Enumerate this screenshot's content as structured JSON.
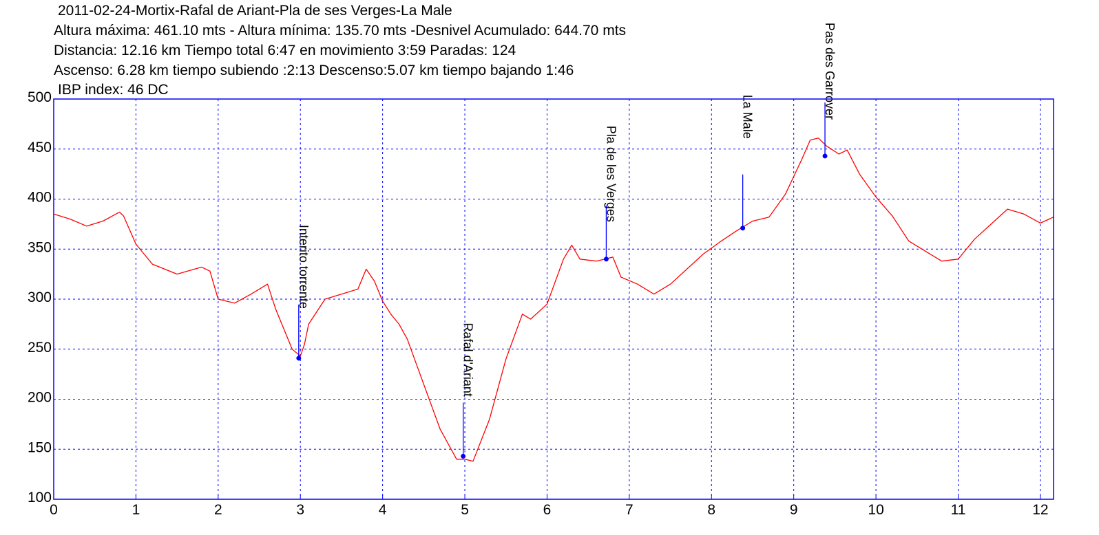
{
  "header": {
    "line1": "2011-02-24-Mortix-Rafal de Ariant-Pla de ses Verges-La Male",
    "line2": "Altura máxima: 461.10 mts - Altura mínima: 135.70 mts -Desnivel Acumulado: 644.70 mts",
    "line3": "Distancia: 12.16 km  Tiempo total 6:47  en movimiento 3:59 Paradas: 124",
    "line4": "Ascenso: 6.28 km  tiempo subiendo :2:13  Descenso:5.07 km tiempo bajando 1:46",
    "line5": "IBP index: 46 DC"
  },
  "chart_data": {
    "type": "line",
    "title": "2011-02-24-Mortix-Rafal de Ariant-Pla de ses Verges-La Male",
    "xlabel": "",
    "ylabel": "",
    "xlim": [
      0,
      12.16
    ],
    "ylim": [
      100,
      500
    ],
    "xticks": [
      "0",
      "1",
      "2",
      "3",
      "4",
      "5",
      "6",
      "7",
      "8",
      "9",
      "10",
      "11",
      "12"
    ],
    "yticks": [
      "100",
      "150",
      "200",
      "250",
      "300",
      "350",
      "400",
      "450",
      "500"
    ],
    "grid": true,
    "colors": {
      "line": "#ff0000",
      "axes": "#0000ff",
      "grid": "#0000ff",
      "marker": "#0000ff"
    },
    "series": [
      {
        "x": [
          0,
          0.2,
          0.4,
          0.6,
          0.8,
          0.85,
          1.0,
          1.2,
          1.5,
          1.8,
          1.9,
          2.0,
          2.2,
          2.4,
          2.6,
          2.7,
          2.8,
          2.9,
          3.0,
          3.05,
          3.1,
          3.3,
          3.5,
          3.7,
          3.8,
          3.9,
          4.0,
          4.1,
          4.2,
          4.3,
          4.5,
          4.7,
          4.9,
          5.0,
          5.1,
          5.3,
          5.5,
          5.7,
          5.8,
          6.0,
          6.2,
          6.3,
          6.4,
          6.6,
          6.8,
          6.9,
          7.1,
          7.3,
          7.5,
          7.7,
          7.9,
          8.1,
          8.3,
          8.5,
          8.7,
          8.9,
          9.1,
          9.2,
          9.3,
          9.4,
          9.55,
          9.65,
          9.8,
          10.0,
          10.2,
          10.4,
          10.6,
          10.8,
          11.0,
          11.2,
          11.4,
          11.6,
          11.8,
          12.0,
          12.16
        ],
        "y": [
          385,
          380,
          373,
          378,
          387,
          383,
          355,
          335,
          325,
          332,
          328,
          300,
          296,
          305,
          315,
          290,
          270,
          250,
          243,
          255,
          275,
          300,
          305,
          310,
          330,
          318,
          298,
          285,
          275,
          260,
          215,
          170,
          140,
          140,
          138,
          180,
          240,
          285,
          280,
          295,
          340,
          354,
          340,
          338,
          342,
          322,
          315,
          305,
          315,
          330,
          345,
          357,
          368,
          378,
          382,
          405,
          440,
          459,
          461,
          453,
          445,
          449,
          425,
          402,
          383,
          358,
          348,
          338,
          340,
          360,
          375,
          390,
          385,
          376,
          382
        ]
      }
    ],
    "annotations": [
      {
        "label": "Interito torrente",
        "x": 2.98,
        "y": 241
      },
      {
        "label": "Rafal d'Ariant",
        "x": 4.98,
        "y": 143
      },
      {
        "label": "Pla de les Verges",
        "x": 6.72,
        "y": 340
      },
      {
        "label": "La Male",
        "x": 8.38,
        "y": 371
      },
      {
        "label": "Pas des Garrover",
        "x": 9.38,
        "y": 443
      }
    ]
  }
}
